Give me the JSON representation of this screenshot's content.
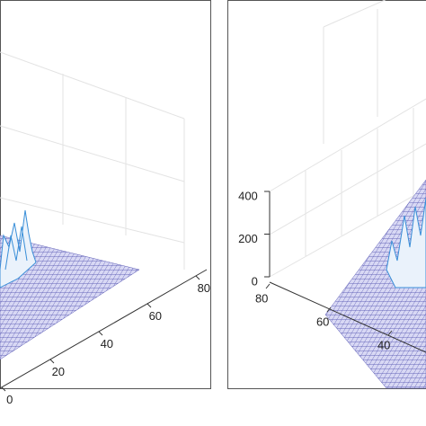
{
  "chart_data": [
    {
      "type": "surface",
      "yticks": [
        0,
        20,
        40,
        60,
        80
      ],
      "ylim": [
        0,
        80
      ]
    },
    {
      "type": "surface",
      "zticks": [
        0,
        200,
        400
      ],
      "zlim": [
        0,
        400
      ],
      "xticks": [
        80,
        60,
        40
      ],
      "xlim": [
        80,
        40
      ]
    }
  ]
}
